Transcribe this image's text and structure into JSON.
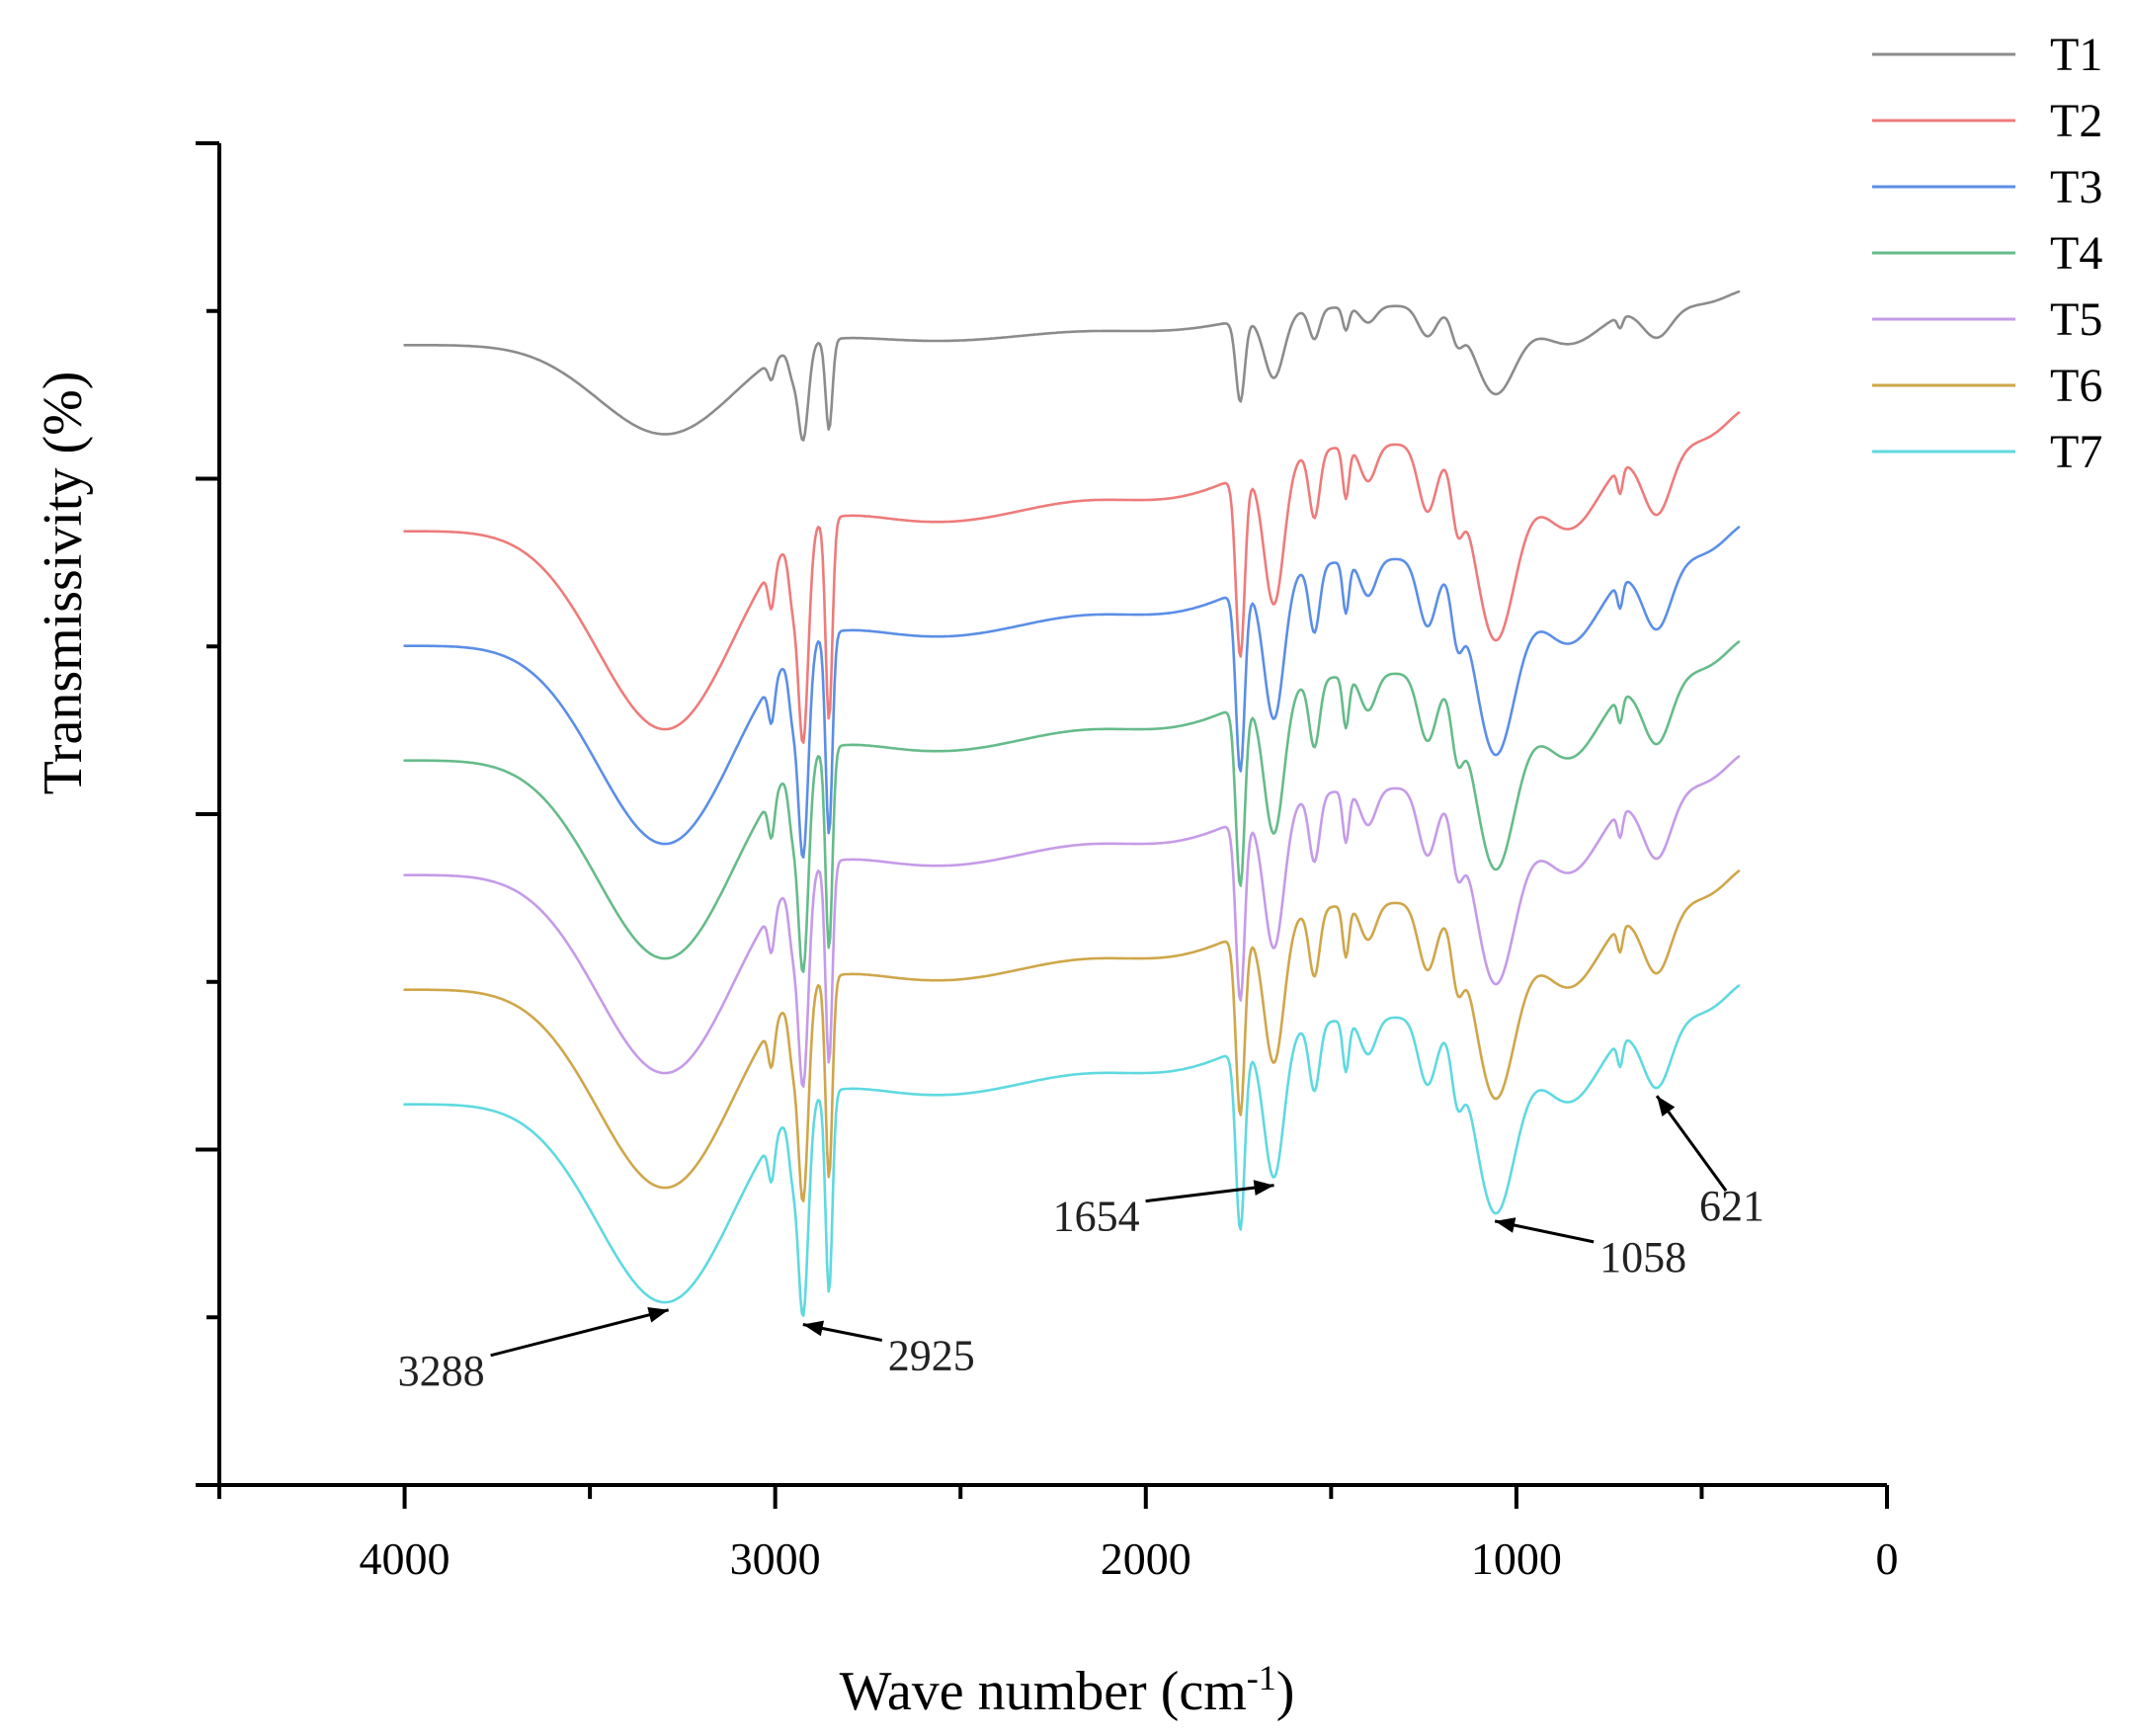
{
  "chart_data": {
    "type": "line",
    "title": "",
    "xlabel": "Wave number (cm",
    "xlabel_sup": "-1",
    "xlabel_end": ")",
    "ylabel": "Transmissivity (%)",
    "xlim": [
      4500,
      0
    ],
    "x_ticks": [
      4000,
      3000,
      2000,
      1000,
      0
    ],
    "x_tick_labels": [
      "4000",
      "3000",
      "2000",
      "1000",
      "0"
    ],
    "ylim": [
      0,
      100
    ],
    "y_tick_labels_shown": false,
    "legend_position": "top-right",
    "series": [
      {
        "name": "T1",
        "color": "#8c8c8c",
        "offset": 0
      },
      {
        "name": "T2",
        "color": "#ee7b7b",
        "offset": 1
      },
      {
        "name": "T3",
        "color": "#5b8ee6",
        "offset": 2
      },
      {
        "name": "T4",
        "color": "#66bb8a",
        "offset": 3
      },
      {
        "name": "T5",
        "color": "#c59be8",
        "offset": 4
      },
      {
        "name": "T6",
        "color": "#cfa64a",
        "offset": 5
      },
      {
        "name": "T7",
        "color": "#5fd9e0",
        "offset": 6
      }
    ],
    "annotations": [
      {
        "label": "3288",
        "wavenumber": 3288
      },
      {
        "label": "2925",
        "wavenumber": 2925
      },
      {
        "label": "1654",
        "wavenumber": 1654
      },
      {
        "label": "1058",
        "wavenumber": 1058
      },
      {
        "label": "621",
        "wavenumber": 621
      }
    ]
  }
}
